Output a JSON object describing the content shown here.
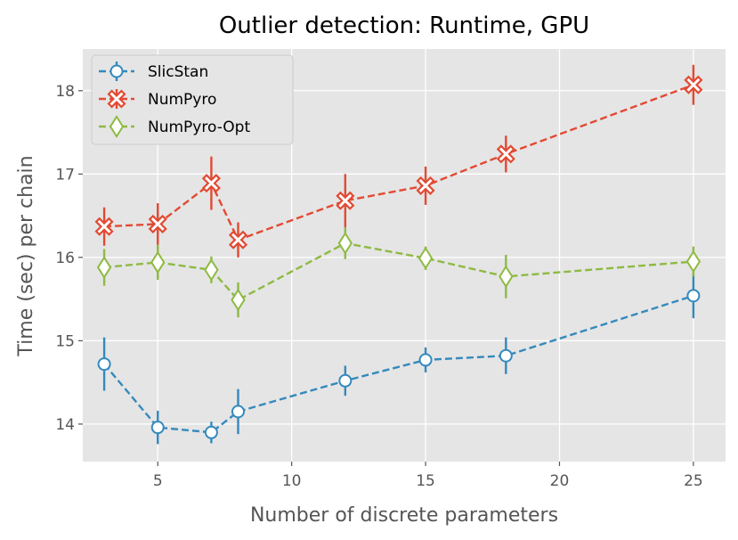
{
  "chart_data": {
    "type": "line",
    "title": "Outlier detection: Runtime, GPU",
    "xlabel": "Number of discrete parameters",
    "ylabel": "Time (sec) per chain",
    "xlim": [
      2.2,
      26.2
    ],
    "ylim": [
      13.55,
      18.5
    ],
    "xticks": [
      5,
      10,
      15,
      20,
      25
    ],
    "yticks": [
      14,
      15,
      16,
      17,
      18
    ],
    "grid": true,
    "legend_position": "top-left",
    "series": [
      {
        "name": "SlicStan",
        "color": "#348abd",
        "marker": "circle",
        "x": [
          3,
          5,
          7,
          8,
          12,
          15,
          18,
          25
        ],
        "y": [
          14.72,
          13.96,
          13.9,
          14.15,
          14.52,
          14.77,
          14.82,
          15.54
        ],
        "err": [
          0.32,
          0.2,
          0.13,
          0.27,
          0.18,
          0.15,
          0.22,
          0.27
        ]
      },
      {
        "name": "NumPyro",
        "color": "#e24a33",
        "marker": "x",
        "x": [
          3,
          5,
          7,
          8,
          12,
          15,
          18,
          25
        ],
        "y": [
          16.37,
          16.4,
          16.89,
          16.21,
          16.68,
          16.86,
          17.24,
          18.07
        ],
        "err": [
          0.23,
          0.25,
          0.32,
          0.21,
          0.32,
          0.23,
          0.22,
          0.24
        ]
      },
      {
        "name": "NumPyro-Opt",
        "color": "#8eba42",
        "marker": "diamond",
        "x": [
          3,
          5,
          7,
          8,
          12,
          15,
          18,
          25
        ],
        "y": [
          15.88,
          15.94,
          15.85,
          15.49,
          16.17,
          15.99,
          15.77,
          15.95
        ],
        "err": [
          0.22,
          0.21,
          0.16,
          0.21,
          0.19,
          0.14,
          0.26,
          0.18
        ]
      }
    ]
  }
}
